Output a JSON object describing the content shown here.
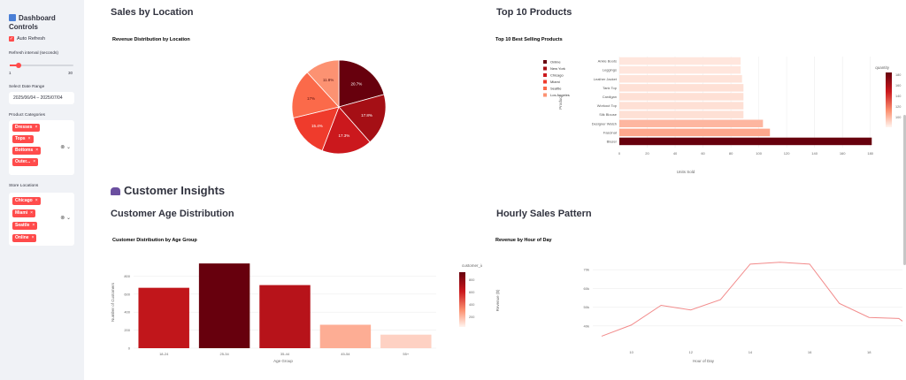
{
  "sidebar": {
    "title": "Dashboard Controls",
    "auto_refresh_label": "Auto Refresh",
    "auto_refresh_checked": true,
    "refresh_interval_label": "Refresh interval (seconds)",
    "slider_min": "1",
    "slider_max": "30",
    "slider_value": 5,
    "date_range_label": "Select Date Range",
    "date_range_value": "2025/06/04 – 2025/07/04",
    "categories_label": "Product Categories",
    "categories": [
      "Dresses",
      "Tops",
      "Bottoms",
      "Outer..."
    ],
    "locations_label": "Store Locations",
    "locations": [
      "Chicago",
      "Miami",
      "Seattle",
      "Online"
    ]
  },
  "main": {
    "sales_by_location_title": "Sales by Location",
    "top_products_title": "Top 10 Products",
    "customer_insights_title": "Customer Insights",
    "age_distribution_title": "Customer Age Distribution",
    "hourly_sales_title": "Hourly Sales Pattern"
  },
  "chart_data": [
    {
      "type": "pie",
      "title": "Revenue Distribution by Location",
      "legend_position": "left",
      "categories": [
        "Online",
        "New York",
        "Chicago",
        "Miami",
        "Seattle",
        "Los Angeles"
      ],
      "values": [
        20.7,
        17.8,
        17.3,
        15.4,
        17,
        11.8
      ],
      "labels": [
        "20.7%",
        "17.8%",
        "17.3%",
        "15.4%",
        "17%",
        "11.8%"
      ],
      "colors": [
        "#67000d",
        "#a50f15",
        "#cb181d",
        "#ef3b2c",
        "#fb6a4a",
        "#fc9272"
      ]
    },
    {
      "type": "bar",
      "orientation": "horizontal",
      "title": "Top 10 Best Selling Products",
      "categories": [
        "Ankle Boots",
        "Leggings",
        "Leather Jacket",
        "Tank Top",
        "Cardigan",
        "Workout Top",
        "Silk Blouse",
        "Designer Watch",
        "Fascinat",
        "Blazer"
      ],
      "values": [
        87,
        87,
        88,
        89,
        89,
        89,
        89,
        103,
        108,
        181
      ],
      "xlabel": "Units Sold",
      "ylabel": "Product",
      "xlim": [
        0,
        190
      ],
      "x_ticks": [
        "0",
        "20",
        "40",
        "60",
        "80",
        "100",
        "120",
        "140",
        "160",
        "180"
      ],
      "colorbar_title": "quantity",
      "colorbar_ticks": [
        "180",
        "160",
        "140",
        "120",
        "100"
      ]
    },
    {
      "type": "bar",
      "title": "Customer Distribution by Age Group",
      "categories": [
        "18-24",
        "25-34",
        "35-44",
        "45-54",
        "55+"
      ],
      "values": [
        670,
        940,
        700,
        260,
        150
      ],
      "xlabel": "Age Group",
      "ylabel": "Number of Customers",
      "ylim": [
        0,
        1000
      ],
      "y_ticks": [
        "0",
        "200",
        "400",
        "600",
        "800"
      ],
      "colorbar_title": "customer_id",
      "colorbar_ticks": [
        "800",
        "600",
        "400",
        "200"
      ]
    },
    {
      "type": "line",
      "title": "Revenue by Hour of Day",
      "x": [
        9,
        10,
        11,
        12,
        13,
        14,
        15,
        16,
        17,
        18,
        19,
        20,
        21
      ],
      "values": [
        34500,
        40500,
        51000,
        48500,
        54000,
        73000,
        74000,
        73000,
        52000,
        44500,
        44000,
        32500,
        39000
      ],
      "xlabel": "Hour of Day",
      "ylabel": "Revenue ($)",
      "ylim": [
        30000,
        80000
      ],
      "x_ticks": [
        "10",
        "12",
        "14",
        "16",
        "18",
        "20"
      ],
      "y_ticks": [
        "40k",
        "50k",
        "60k",
        "70k"
      ],
      "color": "#f28b8b"
    }
  ]
}
